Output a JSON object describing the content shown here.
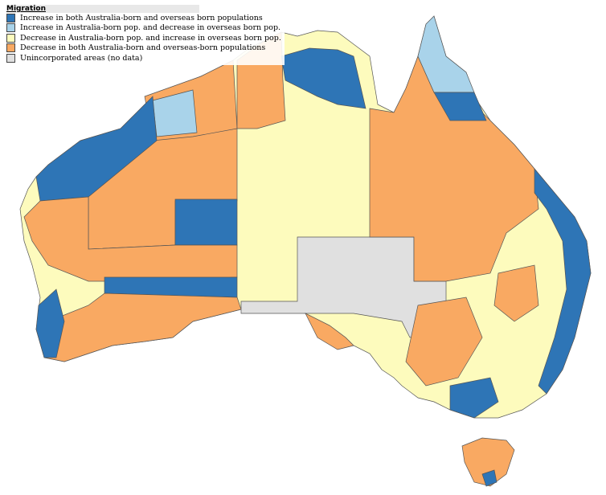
{
  "legend": {
    "title": "Migration",
    "items": [
      {
        "label": "Increase in both Australia-born and overseas born populations",
        "color": "#2e75b6"
      },
      {
        "label": "Increase in Australia-born pop. and decrease in overseas born pop.",
        "color": "#a9d3ea"
      },
      {
        "label": "Decrease in Australia-born pop. and increase in overseas born pop.",
        "color": "#fdfbbd"
      },
      {
        "label": "Decrease in both Australia-born and overseas-born populations",
        "color": "#f9a962"
      },
      {
        "label": "Unincorporated areas (no data)",
        "color": "#e0e0e0"
      }
    ]
  }
}
